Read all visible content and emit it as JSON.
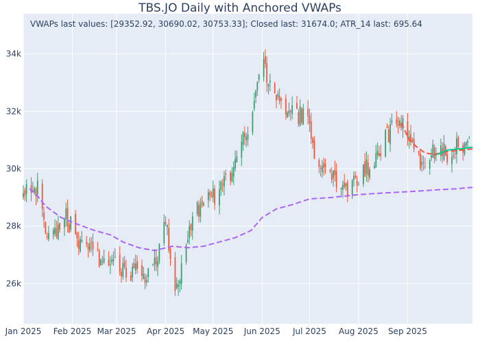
{
  "chart_data": {
    "type": "candlestick",
    "title": "TBS.JO Daily with Anchored VWAPs",
    "annotation": "VWAPs last values: [29352.92, 30690.02, 30753.33]; Closed last: 31674.0; ATR_14 last: 695.64",
    "x_range": [
      "2025-01-01",
      "2025-10-12"
    ],
    "y_range": [
      24600,
      35400
    ],
    "x_ticks": [
      {
        "date": "2025-01-01",
        "label": "Jan 2025"
      },
      {
        "date": "2025-02-01",
        "label": "Feb 2025"
      },
      {
        "date": "2025-03-01",
        "label": "Mar 2025"
      },
      {
        "date": "2025-04-01",
        "label": "Apr 2025"
      },
      {
        "date": "2025-05-01",
        "label": "May 2025"
      },
      {
        "date": "2025-06-01",
        "label": "Jun 2025"
      },
      {
        "date": "2025-07-01",
        "label": "Jul 2025"
      },
      {
        "date": "2025-08-01",
        "label": "Aug 2025"
      },
      {
        "date": "2025-09-01",
        "label": "Sep 2025"
      }
    ],
    "y_ticks": [
      {
        "value": 26000,
        "label": "26k"
      },
      {
        "value": 28000,
        "label": "28k"
      },
      {
        "value": 30000,
        "label": "30k"
      },
      {
        "value": 32000,
        "label": "32k"
      },
      {
        "value": 34000,
        "label": "34k"
      }
    ],
    "colors": {
      "up": "#3d9970",
      "down": "#ef553b",
      "vwap_1": "#ab63fa",
      "vwap_2": "#ef553b",
      "vwap_3": "#00cc96",
      "plot_bg": "#e5ecf6",
      "grid": "#ffffff"
    },
    "grid": true,
    "price_path": [
      [
        "2025-01-01",
        29100
      ],
      [
        "2025-01-06",
        29450
      ],
      [
        "2025-01-10",
        29250
      ],
      [
        "2025-01-14",
        28000
      ],
      [
        "2025-01-20",
        27800
      ],
      [
        "2025-01-28",
        28300
      ],
      [
        "2025-02-04",
        27600
      ],
      [
        "2025-02-12",
        27200
      ],
      [
        "2025-02-20",
        26800
      ],
      [
        "2025-02-27",
        26700
      ],
      [
        "2025-03-06",
        26500
      ],
      [
        "2025-03-12",
        26400
      ],
      [
        "2025-03-18",
        26200
      ],
      [
        "2025-03-24",
        26500
      ],
      [
        "2025-03-28",
        27200
      ],
      [
        "2025-04-01",
        28200
      ],
      [
        "2025-04-04",
        27000
      ],
      [
        "2025-04-08",
        25700
      ],
      [
        "2025-04-12",
        27000
      ],
      [
        "2025-04-18",
        28200
      ],
      [
        "2025-04-25",
        28900
      ],
      [
        "2025-05-02",
        29100
      ],
      [
        "2025-05-09",
        29500
      ],
      [
        "2025-05-15",
        30300
      ],
      [
        "2025-05-20",
        31000
      ],
      [
        "2025-05-25",
        31800
      ],
      [
        "2025-05-28",
        32800
      ],
      [
        "2025-06-01",
        34300
      ],
      [
        "2025-06-04",
        33200
      ],
      [
        "2025-06-09",
        32500
      ],
      [
        "2025-06-16",
        32100
      ],
      [
        "2025-06-23",
        31800
      ],
      [
        "2025-06-30",
        32000
      ],
      [
        "2025-07-04",
        30300
      ],
      [
        "2025-07-10",
        30100
      ],
      [
        "2025-07-16",
        29600
      ],
      [
        "2025-07-21",
        29400
      ],
      [
        "2025-07-25",
        29200
      ],
      [
        "2025-08-01",
        29700
      ],
      [
        "2025-08-08",
        30100
      ],
      [
        "2025-08-15",
        30700
      ],
      [
        "2025-08-20",
        31200
      ],
      [
        "2025-08-26",
        31700
      ],
      [
        "2025-09-01",
        31300
      ],
      [
        "2025-09-06",
        30600
      ],
      [
        "2025-09-11",
        30000
      ],
      [
        "2025-09-16",
        30500
      ],
      [
        "2025-09-22",
        30900
      ],
      [
        "2025-09-27",
        30300
      ],
      [
        "2025-10-02",
        31000
      ],
      [
        "2025-10-06",
        30900
      ],
      [
        "2025-10-12",
        31674
      ]
    ],
    "vwap_series": [
      {
        "style": "dash",
        "color_key": "vwap_1",
        "points": [
          [
            "2025-01-05",
            29300
          ],
          [
            "2025-01-10",
            29050
          ],
          [
            "2025-01-15",
            28700
          ],
          [
            "2025-01-25",
            28300
          ],
          [
            "2025-02-05",
            28050
          ],
          [
            "2025-02-15",
            27850
          ],
          [
            "2025-02-25",
            27700
          ],
          [
            "2025-03-05",
            27450
          ],
          [
            "2025-03-15",
            27250
          ],
          [
            "2025-03-25",
            27150
          ],
          [
            "2025-04-05",
            27300
          ],
          [
            "2025-04-15",
            27250
          ],
          [
            "2025-04-25",
            27300
          ],
          [
            "2025-05-05",
            27450
          ],
          [
            "2025-05-15",
            27600
          ],
          [
            "2025-05-25",
            27850
          ],
          [
            "2025-06-01",
            28300
          ],
          [
            "2025-06-10",
            28600
          ],
          [
            "2025-06-20",
            28750
          ],
          [
            "2025-07-01",
            28950
          ],
          [
            "2025-07-15",
            29000
          ],
          [
            "2025-08-01",
            29100
          ],
          [
            "2025-08-15",
            29150
          ],
          [
            "2025-09-01",
            29200
          ],
          [
            "2025-09-15",
            29250
          ],
          [
            "2025-10-01",
            29300
          ],
          [
            "2025-10-12",
            29352.92
          ]
        ]
      },
      {
        "style": "dash",
        "color_key": "vwap_2",
        "points": [
          [
            "2025-08-28",
            31600
          ],
          [
            "2025-09-02",
            31000
          ],
          [
            "2025-09-07",
            30750
          ],
          [
            "2025-09-12",
            30550
          ],
          [
            "2025-09-18",
            30500
          ],
          [
            "2025-09-26",
            30600
          ],
          [
            "2025-10-12",
            30690.02
          ]
        ]
      },
      {
        "style": "solid",
        "color_key": "vwap_3",
        "points": [
          [
            "2025-09-20",
            30500
          ],
          [
            "2025-09-26",
            30650
          ],
          [
            "2025-10-05",
            30700
          ],
          [
            "2025-10-12",
            30753.33
          ]
        ]
      }
    ]
  }
}
